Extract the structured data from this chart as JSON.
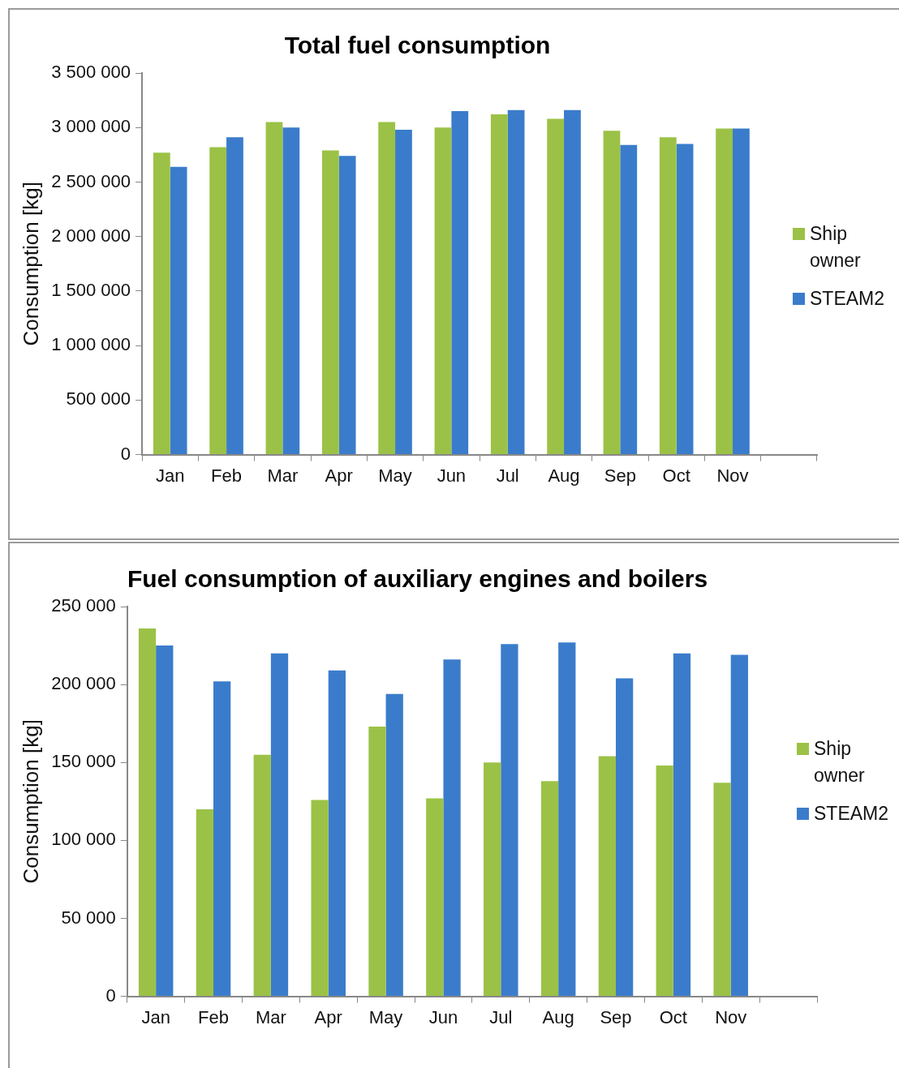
{
  "chart_data": [
    {
      "type": "bar",
      "title": "Total fuel consumption",
      "ylabel": "Consumption [kg]",
      "categories": [
        "Jan",
        "Feb",
        "Mar",
        "Apr",
        "May",
        "Jun",
        "Jul",
        "Aug",
        "Sep",
        "Oct",
        "Nov",
        null
      ],
      "series": [
        {
          "name": "Ship owner",
          "color": "#9bc246",
          "values": [
            2770000,
            2820000,
            3050000,
            2790000,
            3050000,
            3000000,
            3120000,
            3080000,
            2970000,
            2910000,
            2990000,
            null
          ]
        },
        {
          "name": "STEAM2",
          "color": "#3a7ccb",
          "values": [
            2640000,
            2910000,
            3000000,
            2740000,
            2980000,
            3150000,
            3160000,
            3160000,
            2840000,
            2850000,
            2990000,
            null
          ]
        }
      ],
      "ylim": [
        0,
        3500000
      ],
      "yticks": [
        {
          "value": 0,
          "label": "0"
        },
        {
          "value": 500000,
          "label": "500 000"
        },
        {
          "value": 1000000,
          "label": "1 000 000"
        },
        {
          "value": 1500000,
          "label": "1 500 000"
        },
        {
          "value": 2000000,
          "label": "2 000 000"
        },
        {
          "value": 2500000,
          "label": "2 500 000"
        },
        {
          "value": 3000000,
          "label": "3 000 000"
        },
        {
          "value": 3500000,
          "label": "3 500 000"
        }
      ],
      "grid": false,
      "legend": "right"
    },
    {
      "type": "bar",
      "title": "Fuel consumption of auxiliary engines and boilers",
      "ylabel": "Consumption [kg]",
      "categories": [
        "Jan",
        "Feb",
        "Mar",
        "Apr",
        "May",
        "Jun",
        "Jul",
        "Aug",
        "Sep",
        "Oct",
        "Nov",
        null
      ],
      "series": [
        {
          "name": "Ship owner",
          "color": "#9bc246",
          "values": [
            236000,
            120000,
            155000,
            126000,
            173000,
            127000,
            150000,
            138000,
            154000,
            148000,
            137000,
            null
          ]
        },
        {
          "name": "STEAM2",
          "color": "#3a7ccb",
          "values": [
            225000,
            202000,
            220000,
            209000,
            194000,
            216000,
            226000,
            227000,
            204000,
            220000,
            219000,
            null
          ]
        }
      ],
      "ylim": [
        0,
        250000
      ],
      "yticks": [
        {
          "value": 0,
          "label": "0"
        },
        {
          "value": 50000,
          "label": "50 000"
        },
        {
          "value": 100000,
          "label": "100 000"
        },
        {
          "value": 150000,
          "label": "150 000"
        },
        {
          "value": 200000,
          "label": "200 000"
        },
        {
          "value": 250000,
          "label": "250 000"
        }
      ],
      "grid": false,
      "legend": "right"
    }
  ]
}
